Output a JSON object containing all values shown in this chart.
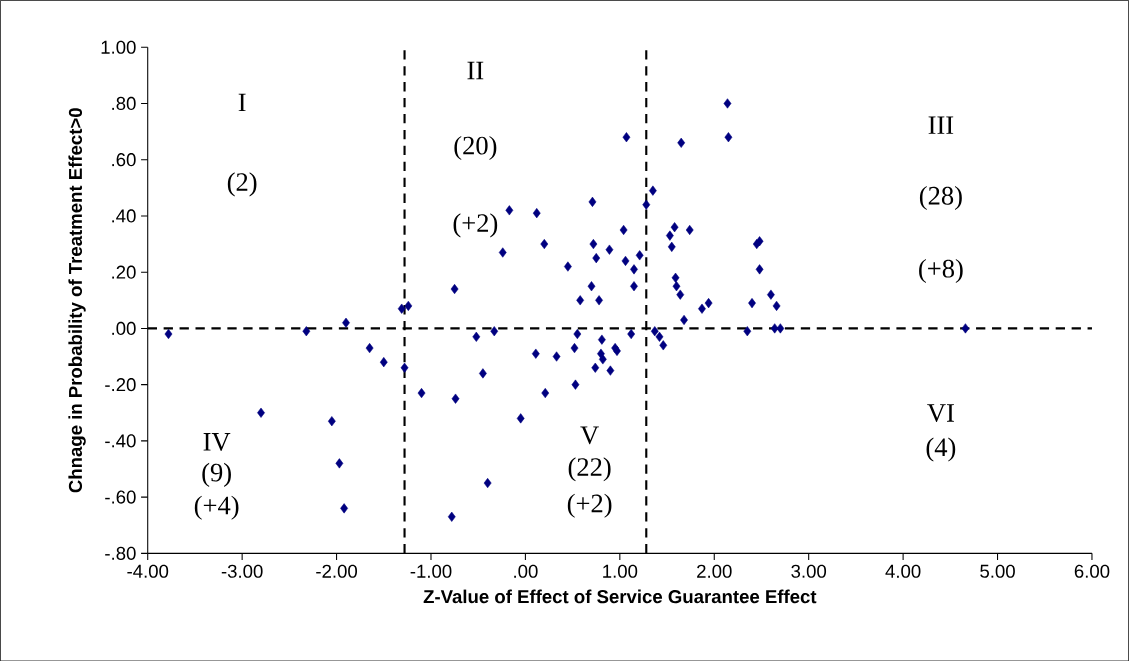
{
  "chart_data": {
    "type": "scatter",
    "xlabel": "Z-Value of Effect of Service Guarantee Effect",
    "ylabel": "Chnage in Probability of Treatment Effect>0",
    "x": [
      -3.78,
      -2.32,
      -1.9,
      -1.65,
      -1.5,
      -1.31,
      -1.24,
      -1.28,
      -2.8,
      -2.05,
      -1.97,
      -1.92,
      -1.1,
      -0.75,
      -0.74,
      -0.78,
      -0.4,
      -0.52,
      -0.45,
      -0.33,
      -0.24,
      -0.17,
      -0.05,
      0.12,
      0.2,
      0.11,
      0.21,
      0.33,
      0.45,
      0.52,
      0.53,
      0.55,
      0.58,
      0.7,
      0.72,
      0.71,
      0.75,
      0.78,
      0.74,
      0.81,
      0.8,
      0.82,
      0.89,
      0.9,
      0.95,
      0.97,
      1.04,
      1.06,
      1.07,
      1.12,
      1.15,
      1.15,
      1.21,
      1.28,
      1.35,
      1.37,
      1.42,
      1.46,
      1.53,
      1.55,
      1.58,
      1.59,
      1.6,
      1.64,
      1.65,
      1.68,
      1.74,
      1.87,
      1.94,
      2.14,
      2.15,
      2.35,
      2.4,
      2.45,
      2.48,
      2.48,
      2.6,
      2.66,
      2.64,
      2.7,
      4.66
    ],
    "values": [
      -0.02,
      -0.01,
      0.02,
      -0.07,
      -0.12,
      0.07,
      0.08,
      -0.14,
      -0.3,
      -0.33,
      -0.48,
      -0.64,
      -0.23,
      0.14,
      -0.25,
      -0.67,
      -0.55,
      -0.03,
      -0.16,
      -0.01,
      0.27,
      0.42,
      -0.32,
      0.41,
      0.3,
      -0.09,
      -0.23,
      -0.1,
      0.22,
      -0.07,
      -0.2,
      -0.02,
      0.1,
      0.15,
      0.3,
      0.45,
      0.25,
      0.1,
      -0.14,
      -0.04,
      -0.09,
      -0.11,
      0.28,
      -0.15,
      -0.07,
      -0.08,
      0.35,
      0.24,
      0.68,
      -0.02,
      0.15,
      0.21,
      0.26,
      0.44,
      0.49,
      -0.01,
      -0.03,
      -0.06,
      0.33,
      0.29,
      0.36,
      0.18,
      0.15,
      0.12,
      0.66,
      0.03,
      0.35,
      0.07,
      0.09,
      0.8,
      0.68,
      -0.01,
      0.09,
      0.3,
      0.31,
      0.21,
      0.12,
      0.08,
      0.0,
      0.0,
      0.0
    ],
    "color": "#000080",
    "marker": "diamond",
    "grid": false,
    "xlim": [
      -4,
      6
    ],
    "ylim": [
      -0.8,
      1.0
    ],
    "xticks": [
      {
        "value": -4,
        "label": "-4.00"
      },
      {
        "value": -3,
        "label": "-3.00"
      },
      {
        "value": -2,
        "label": "-2.00"
      },
      {
        "value": -1,
        "label": "-1.00"
      },
      {
        "value": 0,
        "label": ".00"
      },
      {
        "value": 1,
        "label": "1.00"
      },
      {
        "value": 2,
        "label": "2.00"
      },
      {
        "value": 3,
        "label": "3.00"
      },
      {
        "value": 4,
        "label": "4.00"
      },
      {
        "value": 5,
        "label": "5.00"
      },
      {
        "value": 6,
        "label": "6.00"
      }
    ],
    "yticks": [
      {
        "value": -0.8,
        "label": "-.80"
      },
      {
        "value": -0.6,
        "label": "-.60"
      },
      {
        "value": -0.4,
        "label": "-.40"
      },
      {
        "value": -0.2,
        "label": "-.20"
      },
      {
        "value": 0,
        "label": ".00"
      },
      {
        "value": 0.2,
        "label": ".20"
      },
      {
        "value": 0.4,
        "label": ".40"
      },
      {
        "value": 0.6,
        "label": ".60"
      },
      {
        "value": 0.8,
        "label": ".80"
      },
      {
        "value": 1.0,
        "label": "1.00"
      }
    ],
    "ref_lines": [
      {
        "axis": "x",
        "value": -1.28,
        "line_style": "dashed",
        "color": "#000000"
      },
      {
        "axis": "x",
        "value": 1.28,
        "line_style": "dashed",
        "color": "#000000"
      },
      {
        "axis": "y",
        "value": 0,
        "line_style": "dashed",
        "color": "#000000"
      }
    ],
    "annotations": [
      "I",
      "(2)",
      "II",
      "(20)",
      "(+2)",
      "III",
      "(28)",
      "(+8)",
      "IV",
      "(9)",
      "(+4)",
      "V",
      "(22)",
      "(+2)",
      "VI",
      "(4)"
    ]
  }
}
